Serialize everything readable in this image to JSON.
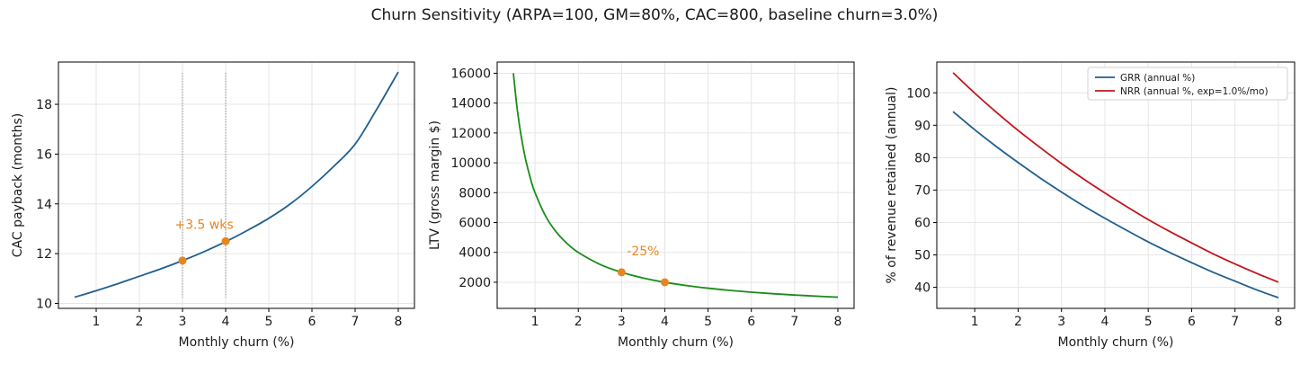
{
  "title": "Churn Sensitivity (ARPA=100, GM=80%, CAC=800, baseline churn=3.0%)",
  "chart_data": [
    {
      "type": "line",
      "xlabel": "Monthly churn (%)",
      "ylabel": "CAC payback (months)",
      "xlim": [
        0.125,
        8.375
      ],
      "ylim": [
        9.8,
        19.7
      ],
      "xticks": [
        1,
        2,
        3,
        4,
        5,
        6,
        7,
        8
      ],
      "yticks": [
        10,
        12,
        14,
        16,
        18
      ],
      "grid": true,
      "series": [
        {
          "color": "#1f5f8f",
          "x": [
            0.5,
            1,
            1.5,
            2,
            2.5,
            3,
            3.5,
            4,
            4.5,
            5,
            5.5,
            6,
            6.5,
            7,
            7.5,
            8
          ],
          "y": [
            10.25,
            10.51,
            10.79,
            11.09,
            11.39,
            11.72,
            12.08,
            12.48,
            12.93,
            13.42,
            14.0,
            14.7,
            15.5,
            16.4,
            17.8,
            19.3
          ]
        }
      ],
      "markers": [
        {
          "x": 3,
          "y": 11.72
        },
        {
          "x": 4,
          "y": 12.5
        }
      ],
      "marker_color": "#e8851e",
      "vlines": [
        3,
        4
      ],
      "annotations": [
        {
          "text": "+3.5 wks",
          "x": 3.5,
          "y": 13.0,
          "color": "#e8851e"
        }
      ]
    },
    {
      "type": "line",
      "xlabel": "Monthly churn (%)",
      "ylabel": "LTV (gross margin $)",
      "xlim": [
        0.125,
        8.375
      ],
      "ylim": [
        250,
        16750
      ],
      "xticks": [
        1,
        2,
        3,
        4,
        5,
        6,
        7,
        8
      ],
      "yticks": [
        2000,
        4000,
        6000,
        8000,
        10000,
        12000,
        14000,
        16000
      ],
      "grid": true,
      "series": [
        {
          "color": "#1a8c1a",
          "x": [
            0.5,
            0.6,
            0.75,
            0.9,
            1,
            1.25,
            1.5,
            1.75,
            2,
            2.5,
            3,
            3.5,
            4,
            4.5,
            5,
            5.5,
            6,
            6.5,
            7,
            7.5,
            8
          ],
          "y": [
            16000,
            13333,
            10667,
            8889,
            8000,
            6400,
            5333,
            4571,
            4000,
            3200,
            2667,
            2286,
            2000,
            1778,
            1600,
            1455,
            1333,
            1231,
            1143,
            1067,
            1000
          ]
        }
      ],
      "markers": [
        {
          "x": 3,
          "y": 2667
        },
        {
          "x": 4,
          "y": 2000
        }
      ],
      "marker_color": "#e8851e",
      "annotations": [
        {
          "text": "-25%",
          "x": 3.5,
          "y": 3800,
          "color": "#e8851e"
        }
      ]
    },
    {
      "type": "line",
      "xlabel": "Monthly churn (%)",
      "ylabel": "% of revenue retained (annual)",
      "xlim": [
        0.125,
        8.375
      ],
      "ylim": [
        33.5,
        109.5
      ],
      "xticks": [
        1,
        2,
        3,
        4,
        5,
        6,
        7,
        8
      ],
      "yticks": [
        40,
        50,
        60,
        70,
        80,
        90,
        100
      ],
      "grid": true,
      "legend": "top-right",
      "series": [
        {
          "name": "GRR (annual %)",
          "color": "#1f5f8f",
          "x": [
            0.5,
            1,
            1.5,
            2,
            2.5,
            3,
            3.5,
            4,
            4.5,
            5,
            5.5,
            6,
            6.5,
            7,
            7.5,
            8
          ],
          "y": [
            94.2,
            88.6,
            83.4,
            78.5,
            73.8,
            69.4,
            65.2,
            61.3,
            57.6,
            54.0,
            50.7,
            47.6,
            44.6,
            41.9,
            39.2,
            36.8
          ]
        },
        {
          "name": "NRR (annual %, exp=1.0%/mo)",
          "color": "#c0161b",
          "x": [
            0.5,
            1,
            1.5,
            2,
            2.5,
            3,
            3.5,
            4,
            4.5,
            5,
            5.5,
            6,
            6.5,
            7,
            7.5,
            8
          ],
          "y": [
            106.2,
            99.9,
            94.0,
            88.4,
            83.2,
            78.2,
            73.5,
            69.1,
            64.9,
            60.9,
            57.2,
            53.7,
            50.3,
            47.2,
            44.3,
            41.6
          ]
        }
      ]
    }
  ]
}
